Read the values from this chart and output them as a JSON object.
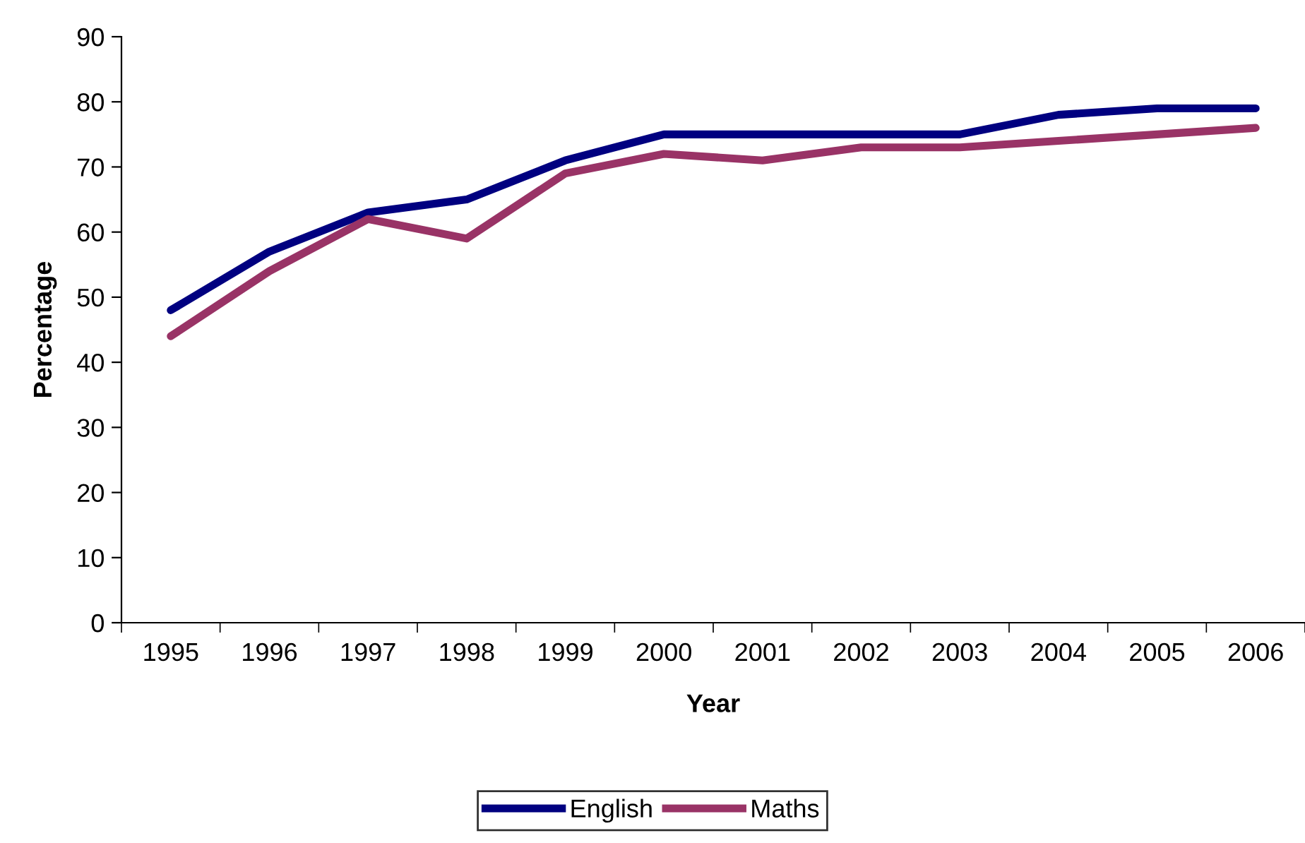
{
  "chart_data": {
    "type": "line",
    "xlabel": "Year",
    "ylabel": "Percentage",
    "categories": [
      "1995",
      "1996",
      "1997",
      "1998",
      "1999",
      "2000",
      "2001",
      "2002",
      "2003",
      "2004",
      "2005",
      "2006"
    ],
    "series": [
      {
        "name": "English",
        "color": "#000080",
        "values": [
          48,
          57,
          63,
          65,
          71,
          75,
          75,
          75,
          75,
          78,
          79,
          79
        ]
      },
      {
        "name": "Maths",
        "color": "#993366",
        "values": [
          44,
          54,
          62,
          59,
          69,
          72,
          71,
          73,
          73,
          74,
          75,
          76
        ]
      }
    ],
    "ylim": [
      0,
      90
    ],
    "yticks": [
      0,
      10,
      20,
      30,
      40,
      50,
      60,
      70,
      80,
      90
    ],
    "grid": false,
    "legend": "bottom",
    "marker": "none",
    "line_style": "solid"
  }
}
